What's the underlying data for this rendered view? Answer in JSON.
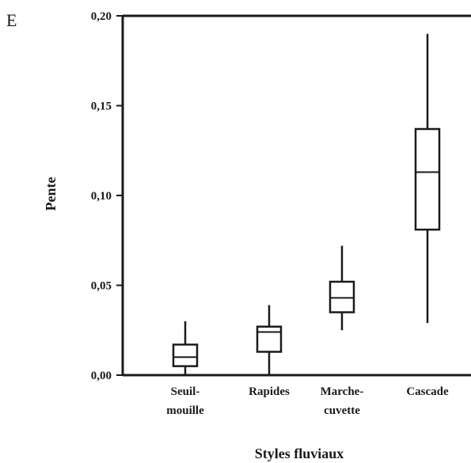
{
  "panel_label": "E",
  "chart_data": {
    "type": "box",
    "title": "",
    "xlabel": "Styles fluviaux",
    "ylabel": "Pente",
    "ylim": [
      0.0,
      0.2
    ],
    "y_ticks": [
      {
        "value": 0.0,
        "label": "0,00"
      },
      {
        "value": 0.05,
        "label": "0,05"
      },
      {
        "value": 0.1,
        "label": "0,10"
      },
      {
        "value": 0.15,
        "label": "0,15"
      },
      {
        "value": 0.2,
        "label": "0,20"
      }
    ],
    "categories": [
      {
        "label_lines": [
          "Seuil-",
          "mouille"
        ],
        "min": 0.0,
        "q1": 0.005,
        "median": 0.01,
        "q3": 0.017,
        "max": 0.03
      },
      {
        "label_lines": [
          "Rapides"
        ],
        "min": 0.0,
        "q1": 0.013,
        "median": 0.024,
        "q3": 0.027,
        "max": 0.039
      },
      {
        "label_lines": [
          "Marche-",
          "cuvette"
        ],
        "min": 0.025,
        "q1": 0.035,
        "median": 0.043,
        "q3": 0.052,
        "max": 0.072
      },
      {
        "label_lines": [
          "Cascade"
        ],
        "min": 0.029,
        "q1": 0.081,
        "median": 0.113,
        "q3": 0.137,
        "max": 0.19
      }
    ],
    "grid": false,
    "legend": "none"
  }
}
